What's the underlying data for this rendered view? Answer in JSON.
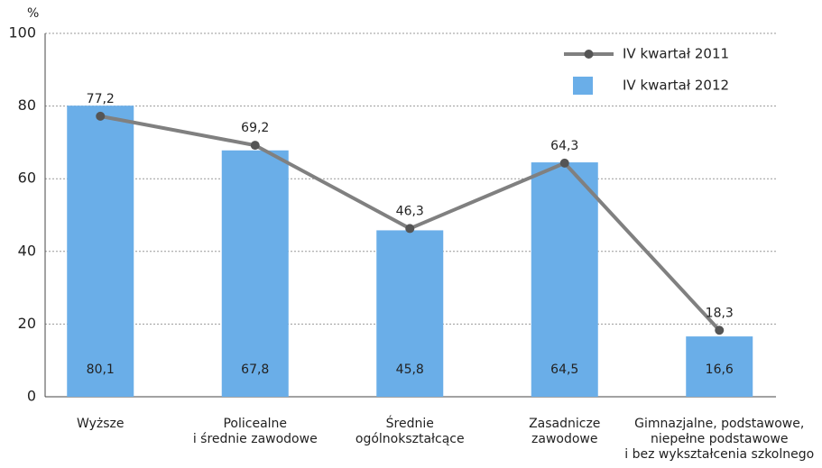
{
  "chart_data": {
    "type": "bar_line",
    "y_label": "%",
    "categories": [
      "Wyższe",
      "Policealne\ni średnie zawodowe",
      "Średnie\nogólnokształcące",
      "Zasadnicze\nzawodowe",
      "Gimnazjalne, podstawowe,\nniepełne podstawowe\ni bez wykształcenia szkolnego"
    ],
    "series": [
      {
        "name": "IV kwartał 2011",
        "type": "line",
        "color": "#808080",
        "marker_color": "#555555",
        "values": [
          77.2,
          69.2,
          46.3,
          64.3,
          18.3
        ],
        "value_labels": [
          "77,2",
          "69,2",
          "46,3",
          "64,3",
          "18,3"
        ]
      },
      {
        "name": "IV kwartał 2012",
        "type": "bar",
        "color": "#6aaee8",
        "values": [
          80.1,
          67.8,
          45.8,
          64.5,
          16.6
        ],
        "value_labels": [
          "80,1",
          "67,8",
          "45,8",
          "64,5",
          "16,6"
        ]
      }
    ],
    "ylim": [
      0,
      100
    ],
    "yticks": [
      0,
      20,
      40,
      60,
      80,
      100
    ],
    "grid": true,
    "legend": "top-right"
  }
}
